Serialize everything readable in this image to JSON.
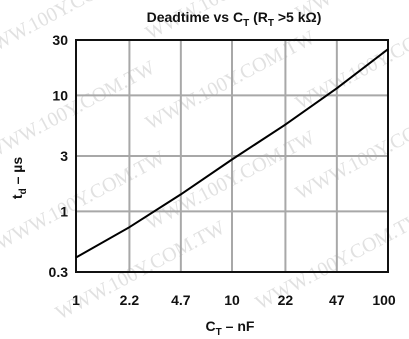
{
  "chart_data": {
    "type": "line",
    "title": "Deadtime vs C",
    "title_sub": "T",
    "title_paren_open": "(R",
    "title_paren_sub": "T",
    "title_paren_rest": ">5 kΩ)",
    "xlabel": "C",
    "xlabel_sub": "T",
    "xlabel_unit": "– nF",
    "ylabel": "t",
    "ylabel_sub": "d",
    "ylabel_unit": "– µs",
    "x_scale": "log",
    "y_scale": "log",
    "xlim": [
      1,
      100
    ],
    "ylim": [
      0.3,
      30
    ],
    "x_ticks": [
      1,
      2.2,
      4.7,
      10,
      22,
      47,
      100
    ],
    "x_tick_labels": [
      "1",
      "2.2",
      "4.7",
      "10",
      "22",
      "47",
      "100"
    ],
    "y_ticks": [
      0.3,
      1,
      3,
      10,
      30
    ],
    "y_tick_labels": [
      "0.3",
      "1",
      "3",
      "10",
      "30"
    ],
    "grid": true,
    "series": [
      {
        "x": [
          1,
          2.2,
          4.7,
          10,
          22,
          47,
          100
        ],
        "y": [
          0.4,
          0.73,
          1.4,
          2.8,
          5.6,
          11.5,
          25
        ],
        "color": "#000000"
      }
    ],
    "watermark": "WWW.100Y.COM.TW"
  }
}
